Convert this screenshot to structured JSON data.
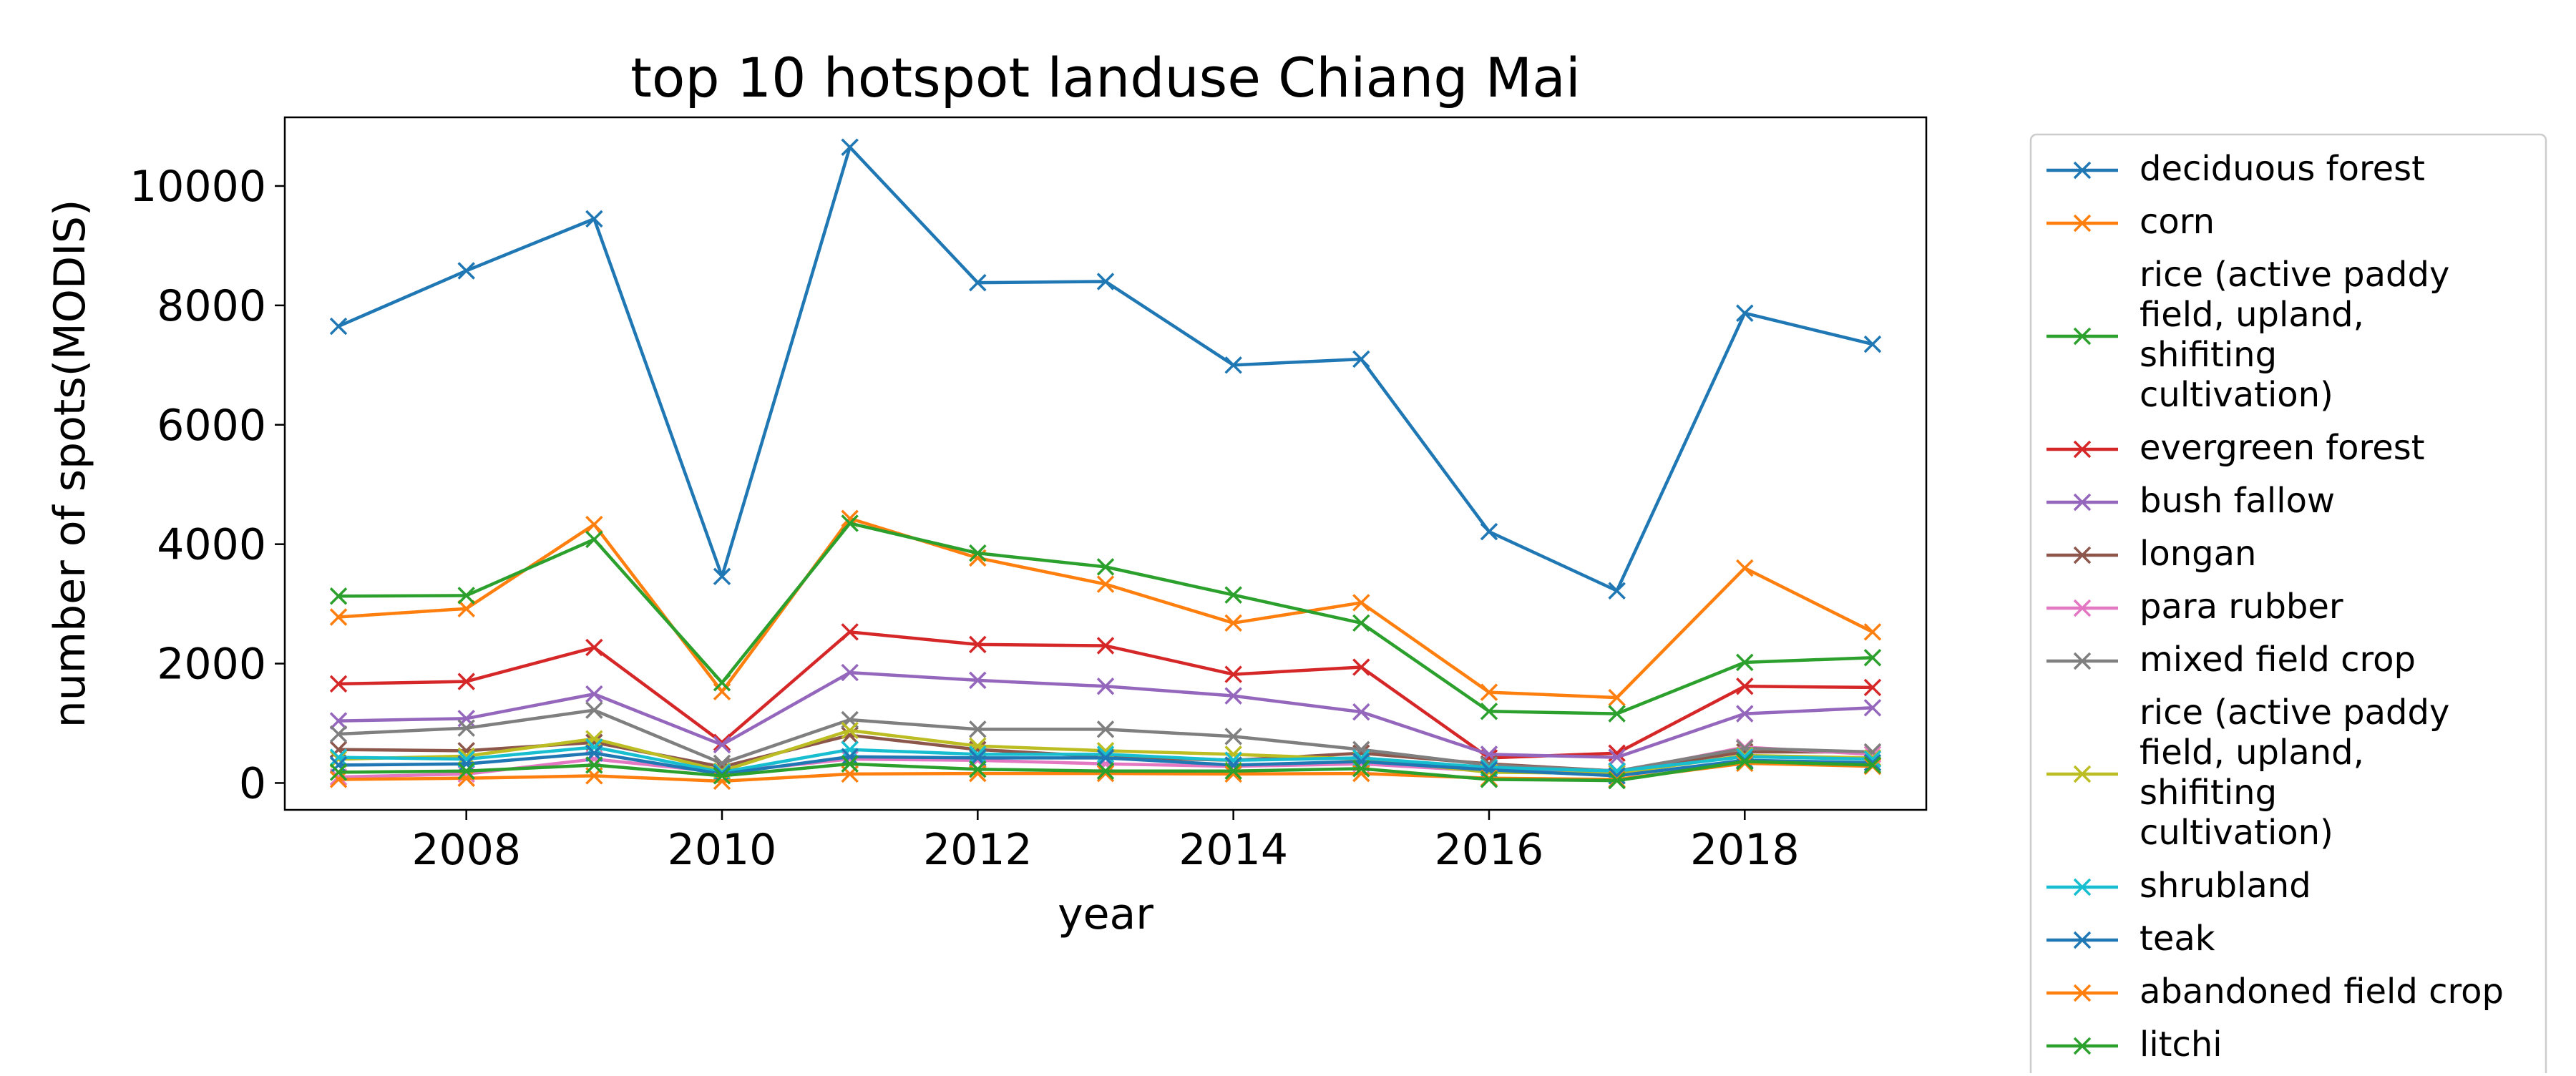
{
  "chart_data": {
    "type": "line",
    "title": "top 10 hotspot landuse Chiang Mai",
    "xlabel": "year",
    "ylabel": "number of spots(MODIS)",
    "xlim": [
      2006.58,
      2019.42
    ],
    "ylim": [
      -450,
      11150
    ],
    "xticks": [
      2008,
      2010,
      2012,
      2014,
      2016,
      2018
    ],
    "yticks": [
      0,
      2000,
      4000,
      6000,
      8000,
      10000
    ],
    "grid": false,
    "legend_placement": "outside-right",
    "marker": "x",
    "x": [
      2007,
      2008,
      2009,
      2010,
      2011,
      2012,
      2013,
      2014,
      2015,
      2016,
      2017,
      2018,
      2019
    ],
    "series": [
      {
        "name": "deciduous forest",
        "color": "#1f77b4",
        "values": [
          7650,
          8580,
          9450,
          3460,
          10650,
          8380,
          8400,
          7000,
          7100,
          4210,
          3220,
          7870,
          7350
        ]
      },
      {
        "name": "corn",
        "color": "#ff7f0e",
        "values": [
          2780,
          2920,
          4330,
          1530,
          4430,
          3770,
          3330,
          2680,
          3020,
          1520,
          1430,
          3600,
          2530
        ]
      },
      {
        "name": "rice (active paddy\nfield, upland,\nshifiting\ncultivation)",
        "color": "#2ca02c",
        "values": [
          3130,
          3140,
          4080,
          1680,
          4350,
          3850,
          3620,
          3150,
          2680,
          1200,
          1160,
          2020,
          2100
        ]
      },
      {
        "name": "evergreen forest",
        "color": "#d62728",
        "values": [
          1660,
          1700,
          2270,
          680,
          2530,
          2320,
          2300,
          1820,
          1940,
          420,
          500,
          1620,
          1600
        ]
      },
      {
        "name": "bush fallow",
        "color": "#9467bd",
        "values": [
          1040,
          1080,
          1490,
          640,
          1850,
          1720,
          1620,
          1460,
          1190,
          480,
          430,
          1160,
          1260
        ]
      },
      {
        "name": "longan",
        "color": "#8c564b",
        "values": [
          560,
          540,
          680,
          270,
          800,
          560,
          440,
          380,
          500,
          320,
          200,
          520,
          520
        ]
      },
      {
        "name": "para rubber",
        "color": "#e377c2",
        "values": [
          100,
          150,
          400,
          180,
          400,
          380,
          320,
          280,
          320,
          200,
          180,
          600,
          480
        ]
      },
      {
        "name": "mixed field crop",
        "color": "#7f7f7f",
        "values": [
          820,
          920,
          1220,
          330,
          1060,
          900,
          900,
          780,
          560,
          300,
          200,
          580,
          520
        ]
      },
      {
        "name": "rice (active paddy\nfield, upland,\nshifiting\ncultivation)",
        "color": "#bcbd22",
        "values": [
          400,
          450,
          740,
          200,
          880,
          620,
          540,
          480,
          400,
          180,
          160,
          460,
          420
        ]
      },
      {
        "name": "shrubland",
        "color": "#17becf",
        "values": [
          430,
          400,
          600,
          180,
          560,
          480,
          480,
          380,
          420,
          260,
          200,
          440,
          400
        ]
      },
      {
        "name": "teak",
        "color": "#1f77b4",
        "values": [
          300,
          320,
          500,
          150,
          440,
          420,
          420,
          300,
          360,
          220,
          120,
          380,
          340
        ]
      },
      {
        "name": "abandoned field crop",
        "color": "#ff7f0e",
        "values": [
          60,
          80,
          120,
          30,
          150,
          160,
          160,
          150,
          160,
          80,
          60,
          330,
          280
        ]
      },
      {
        "name": "litchi",
        "color": "#2ca02c",
        "values": [
          180,
          200,
          300,
          120,
          320,
          230,
          200,
          200,
          240,
          60,
          40,
          360,
          300
        ]
      }
    ]
  }
}
